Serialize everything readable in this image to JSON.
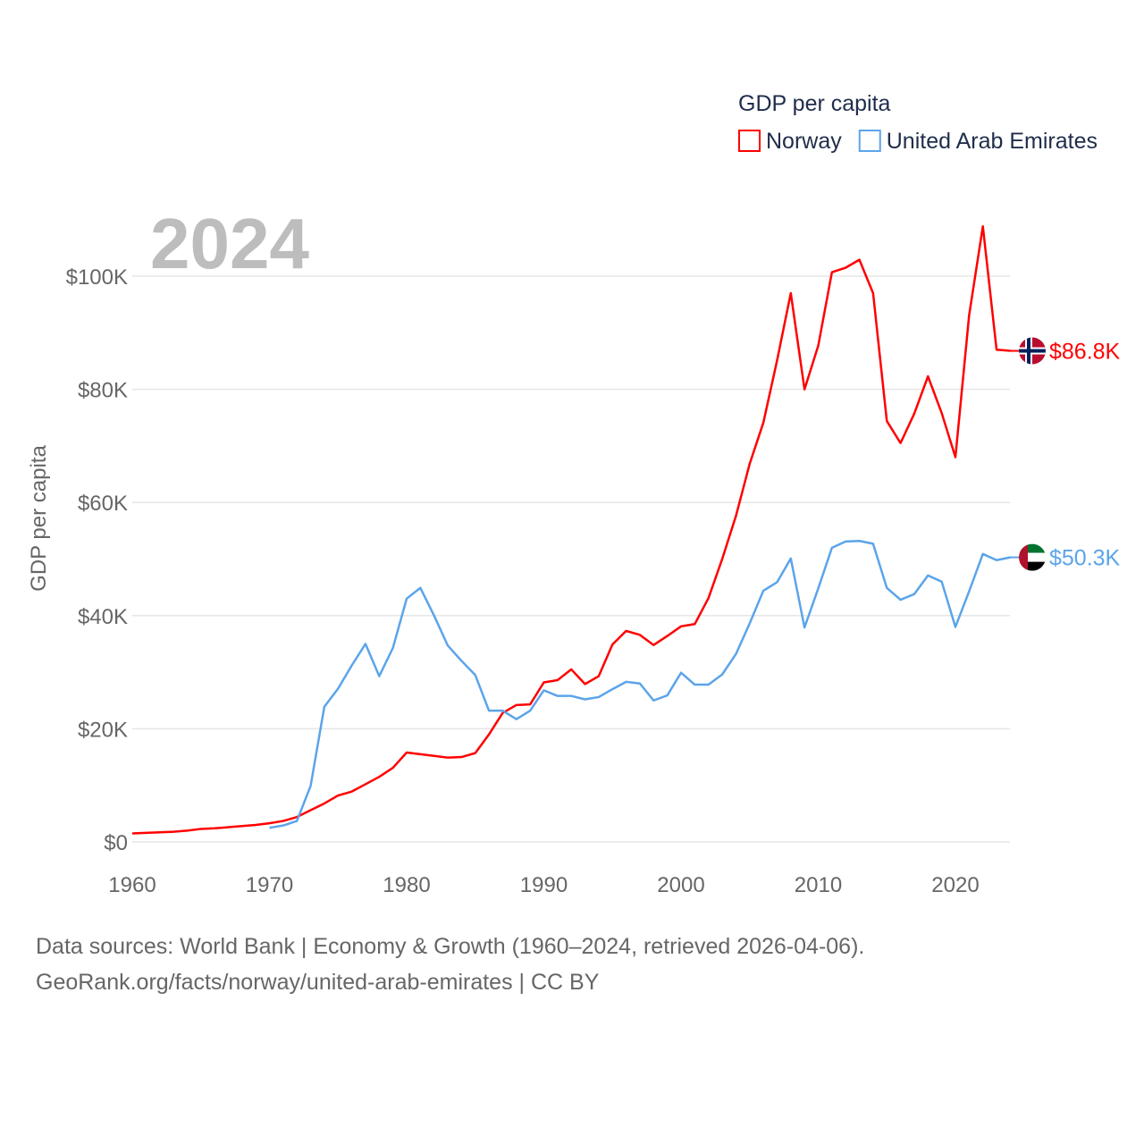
{
  "chart_data": {
    "type": "line",
    "title": "GDP per capita",
    "year_label": "2024",
    "ylabel": "GDP per capita",
    "xlabel": "",
    "xlim": [
      1960,
      2024
    ],
    "ylim": [
      0,
      110000
    ],
    "x_ticks": [
      1960,
      1970,
      1980,
      1990,
      2000,
      2010,
      2020
    ],
    "y_ticks": [
      {
        "v": 0,
        "label": "$0"
      },
      {
        "v": 20000,
        "label": "$20K"
      },
      {
        "v": 40000,
        "label": "$40K"
      },
      {
        "v": 60000,
        "label": "$60K"
      },
      {
        "v": 80000,
        "label": "$80K"
      },
      {
        "v": 100000,
        "label": "$100K"
      }
    ],
    "grid": true,
    "legend_position": "top-right",
    "series": [
      {
        "name": "Norway",
        "color": "#ff0000",
        "end_label": "$86.8K",
        "flag": "norway-flag",
        "start": 1960,
        "values": [
          1500,
          1600,
          1700,
          1800,
          2000,
          2300,
          2400,
          2600,
          2800,
          3000,
          3300,
          3700,
          4400,
          5600,
          6800,
          8200,
          8900,
          10200,
          11500,
          13100,
          15800,
          15500,
          15200,
          14900,
          15000,
          15700,
          19000,
          22800,
          24200,
          24300,
          28200,
          28600,
          30500,
          27900,
          29300,
          34900,
          37300,
          36600,
          34800,
          36400,
          38100,
          38500,
          43100,
          50000,
          57600,
          66800,
          74100,
          85100,
          97000,
          80000,
          87700,
          100700,
          101500,
          102900,
          97000,
          74400,
          70500,
          75700,
          82300,
          75800,
          68000,
          93100,
          108800,
          87000,
          86800
        ]
      },
      {
        "name": "United Arab Emirates",
        "color": "#5ba4ea",
        "end_label": "$50.3K",
        "flag": "uae-flag",
        "start": 1970,
        "values": [
          2500,
          2900,
          3700,
          9900,
          23900,
          27100,
          31200,
          35000,
          29300,
          34300,
          43000,
          44900,
          40000,
          34700,
          32000,
          29500,
          23200,
          23200,
          21700,
          23200,
          26800,
          25800,
          25800,
          25200,
          25600,
          27000,
          28300,
          28000,
          25000,
          25900,
          29900,
          27800,
          27800,
          29600,
          33200,
          38600,
          44400,
          45900,
          50100,
          37900,
          44800,
          52000,
          53100,
          53200,
          52700,
          44900,
          42800,
          43800,
          47100,
          46000,
          38000,
          44300,
          50900,
          49800,
          50300
        ]
      }
    ]
  },
  "footer": {
    "line1": "Data sources: World Bank | Economy & Growth (1960–2024, retrieved 2026-04-06).",
    "line2": "GeoRank.org/facts/norway/united-arab-emirates | CC BY"
  }
}
